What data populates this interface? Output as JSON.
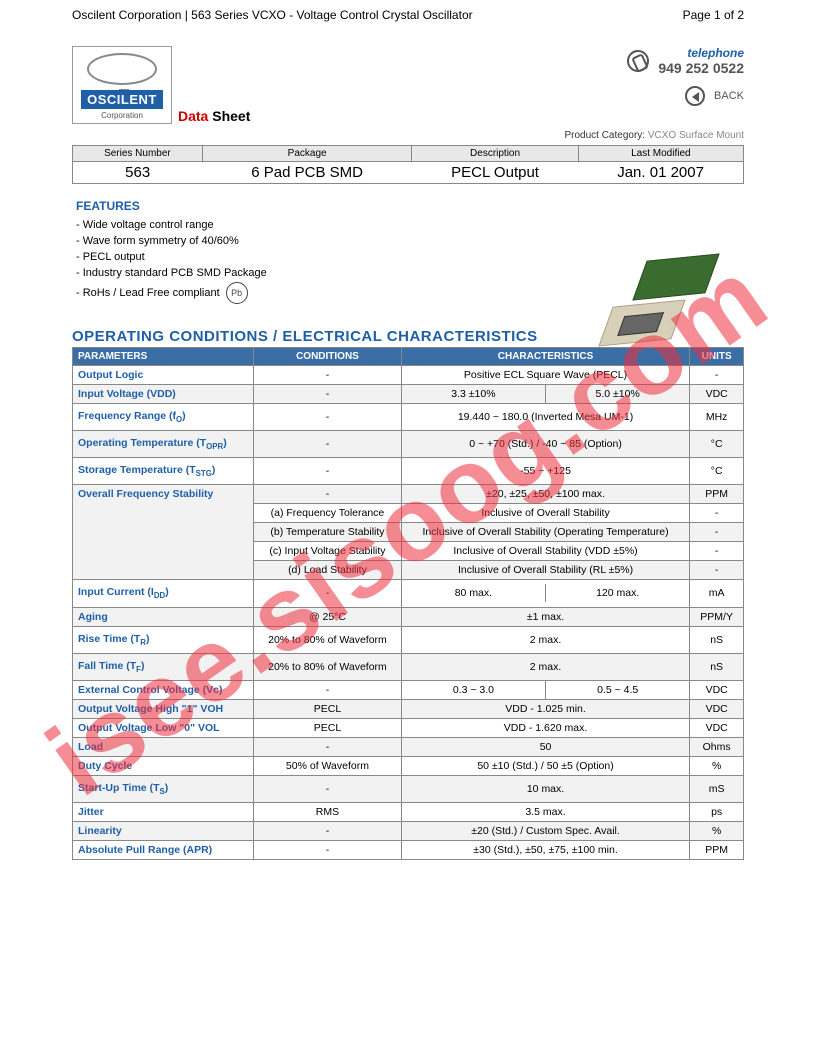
{
  "header": {
    "title": "Oscilent Corporation | 563 Series VCXO - Voltage Control Crystal Oscillator",
    "pager": "Page 1 of 2"
  },
  "logo": {
    "name": "OSCILENT",
    "sub": "Corporation"
  },
  "datasheet": {
    "red": "Data",
    "rest": " Sheet"
  },
  "contact": {
    "tel_label": "telephone",
    "tel_num": "949 252 0522",
    "back": "BACK"
  },
  "prodcat": {
    "label": "Product Category:",
    "value": "VCXO Surface Mount"
  },
  "series": {
    "headers": [
      "Series Number",
      "Package",
      "Description",
      "Last Modified"
    ],
    "values": [
      "563",
      "6 Pad PCB SMD",
      "PECL Output",
      "Jan. 01 2007"
    ]
  },
  "features": {
    "title": "FEATURES",
    "items": [
      "- Wide voltage control range",
      "- Wave form symmetry of 40/60%",
      "- PECL output",
      "- Industry standard PCB SMD Package",
      "- RoHs / Lead Free compliant"
    ],
    "pb": "Pb"
  },
  "section_title": "OPERATING CONDITIONS / ELECTRICAL CHARACTERISTICS",
  "spec": {
    "headers": [
      "PARAMETERS",
      "CONDITIONS",
      "CHARACTERISTICS",
      "UNITS"
    ],
    "col_widths": [
      "27%",
      "22%",
      "43%",
      "8%"
    ],
    "rows": [
      {
        "param": "Output Logic",
        "cond": "-",
        "char": "Positive ECL Square Wave (PECL)",
        "units": "-",
        "white": true
      },
      {
        "param": "Input Voltage (VDD)",
        "cond": "-",
        "char_split": [
          "3.3 ±10%",
          "5.0 ±10%"
        ],
        "units": "VDC"
      },
      {
        "param": "Frequency Range (f<sub>O</sub>)",
        "cond": "-",
        "char": "19.440 ~ 180.0 (Inverted Mesa UM-1)",
        "units": "MHz",
        "white": true,
        "tall": true
      },
      {
        "param": "Operating Temperature (T<sub>OPR</sub>)",
        "cond": "-",
        "char": "0 ~ +70 (Std.) / -40 ~ 85 (Option)",
        "units": "°C",
        "tall": true
      },
      {
        "param": "Storage Temperature (T<sub>STG</sub>)",
        "cond": "-",
        "char": "-55 ~ +125",
        "units": "°C",
        "white": true,
        "tall": true
      },
      {
        "param": "Overall Frequency Stability",
        "cond": "-",
        "char": "±20, ±25, ±50, ±100 max.",
        "units": "PPM"
      },
      {
        "param": "",
        "cond": "(a) Frequency Tolerance",
        "char": "Inclusive of Overall Stability",
        "units": "-",
        "white": true,
        "noparam": true
      },
      {
        "param": "",
        "cond": "(b) Temperature Stability",
        "char": "Inclusive of Overall Stability (Operating Temperature)",
        "units": "-",
        "noparam": true
      },
      {
        "param": "",
        "cond": "(c) Input Voltage Stability",
        "char": "Inclusive of Overall Stability (VDD ±5%)",
        "units": "-",
        "white": true,
        "noparam": true
      },
      {
        "param": "",
        "cond": "(d) Load Stability",
        "char": "Inclusive of Overall Stability (RL ±5%)",
        "units": "-",
        "noparam": true
      },
      {
        "param": "Input Current (I<sub>DD</sub>)",
        "cond": "-",
        "char_split": [
          "80 max.",
          "120 max."
        ],
        "units": "mA",
        "white": true,
        "tall": true
      },
      {
        "param": "Aging",
        "cond": "@ 25°C",
        "char": "±1 max.",
        "units": "PPM/Y"
      },
      {
        "param": "Rise Time (T<sub>R</sub>)",
        "cond": "20% to 80% of Waveform",
        "char": "2 max.",
        "units": "nS",
        "white": true,
        "tall": true
      },
      {
        "param": "Fall Time (T<sub>F</sub>)",
        "cond": "20% to 80% of Waveform",
        "char": "2 max.",
        "units": "nS",
        "tall": true
      },
      {
        "param": "External Control Voltage (Vc)",
        "cond": "-",
        "char_split": [
          "0.3 ~ 3.0",
          "0.5 ~ 4.5"
        ],
        "units": "VDC",
        "white": true
      },
      {
        "param": "Output Voltage High \"1\" VOH",
        "cond": "PECL",
        "char": "VDD - 1.025 min.",
        "units": "VDC"
      },
      {
        "param": "Output Voltage Low \"0\" VOL",
        "cond": "PECL",
        "char": "VDD - 1.620 max.",
        "units": "VDC",
        "white": true
      },
      {
        "param": "Load",
        "cond": "-",
        "char": "50",
        "units": "Ohms"
      },
      {
        "param": "Duty Cycle",
        "cond": "50% of Waveform",
        "char": "50 ±10 (Std.) / 50 ±5 (Option)",
        "units": "%",
        "white": true
      },
      {
        "param": "Start-Up Time (T<sub>S</sub>)",
        "cond": "-",
        "char": "10 max.",
        "units": "mS",
        "tall": true
      },
      {
        "param": "Jitter",
        "cond": "RMS",
        "char": "3.5 max.",
        "units": "ps",
        "white": true
      },
      {
        "param": "Linearity",
        "cond": "-",
        "char": "±20 (Std.) / Custom Spec. Avail.",
        "units": "%"
      },
      {
        "param": "Absolute Pull Range (APR)",
        "cond": "-",
        "char": "±30 (Std.), ±50, ±75, ±100 min.",
        "units": "PPM",
        "white": true
      }
    ]
  },
  "watermark": "isee.sisoog.com",
  "colors": {
    "header_blue": "#3a6ea5",
    "text_blue": "#1f5fa8",
    "watermark_red": "rgba(238,45,60,0.55)",
    "row_grey": "#f2f2f2"
  }
}
